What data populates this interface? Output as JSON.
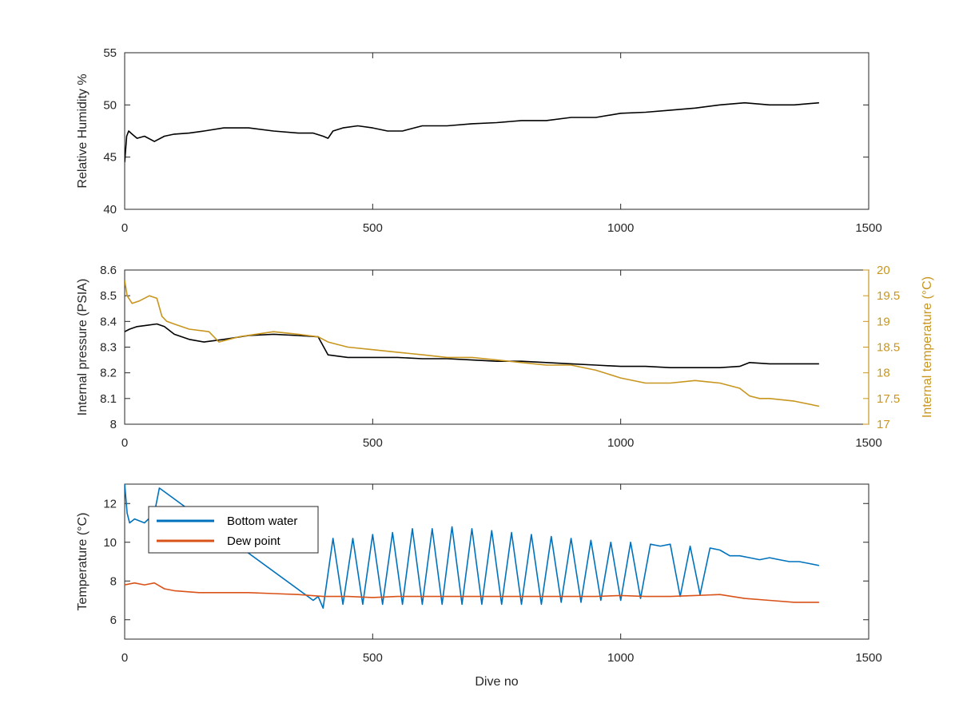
{
  "chart_data": [
    {
      "type": "line",
      "title": "",
      "xlabel": "",
      "ylabel": "Relative Humidity %",
      "xlim": [
        0,
        1500
      ],
      "ylim": [
        40,
        55
      ],
      "xticks": [
        0,
        500,
        1000,
        1500
      ],
      "yticks": [
        40,
        45,
        50,
        55
      ],
      "grid": false,
      "series": [
        {
          "color": "#000000",
          "x": [
            0,
            4,
            8,
            15,
            25,
            40,
            60,
            80,
            100,
            130,
            160,
            200,
            250,
            300,
            350,
            380,
            400,
            410,
            420,
            440,
            470,
            500,
            530,
            560,
            600,
            650,
            700,
            750,
            800,
            850,
            900,
            950,
            1000,
            1050,
            1100,
            1150,
            1200,
            1250,
            1300,
            1350,
            1400
          ],
          "y": [
            44.5,
            47,
            47.5,
            47.2,
            46.8,
            47,
            46.5,
            47,
            47.2,
            47.3,
            47.5,
            47.8,
            47.8,
            47.5,
            47.3,
            47.3,
            47,
            46.8,
            47.5,
            47.8,
            48,
            47.8,
            47.5,
            47.5,
            48,
            48,
            48.2,
            48.3,
            48.5,
            48.5,
            48.8,
            48.8,
            49.2,
            49.3,
            49.5,
            49.7,
            50,
            50.2,
            50,
            50,
            50.2
          ]
        }
      ]
    },
    {
      "type": "line",
      "title": "",
      "xlabel": "",
      "ylabel": "Internal pressure (PSIA)",
      "y2label": "Internal temperature (°C)",
      "xlim": [
        0,
        1500
      ],
      "ylim": [
        8,
        8.6
      ],
      "y2lim": [
        17,
        20
      ],
      "xticks": [
        0,
        500,
        1000,
        1500
      ],
      "yticks": [
        8,
        8.1,
        8.2,
        8.3,
        8.4,
        8.5,
        8.6
      ],
      "y2ticks": [
        17,
        17.5,
        18,
        18.5,
        19,
        19.5,
        20
      ],
      "grid": false,
      "series": [
        {
          "axis": "left",
          "color": "#000000",
          "x": [
            0,
            10,
            25,
            45,
            65,
            80,
            100,
            130,
            160,
            200,
            250,
            300,
            350,
            390,
            410,
            450,
            500,
            550,
            600,
            650,
            700,
            750,
            800,
            850,
            900,
            950,
            1000,
            1050,
            1100,
            1150,
            1200,
            1240,
            1260,
            1300,
            1350,
            1400
          ],
          "y": [
            8.36,
            8.37,
            8.38,
            8.385,
            8.39,
            8.38,
            8.35,
            8.33,
            8.32,
            8.33,
            8.345,
            8.35,
            8.345,
            8.34,
            8.27,
            8.26,
            8.26,
            8.26,
            8.255,
            8.255,
            8.25,
            8.245,
            8.245,
            8.24,
            8.235,
            8.23,
            8.225,
            8.225,
            8.22,
            8.22,
            8.22,
            8.225,
            8.24,
            8.235,
            8.235,
            8.235
          ]
        },
        {
          "axis": "right",
          "color": "#c8961e",
          "x": [
            0,
            5,
            15,
            30,
            50,
            65,
            75,
            85,
            100,
            130,
            170,
            190,
            230,
            300,
            350,
            390,
            410,
            450,
            500,
            550,
            600,
            650,
            700,
            750,
            800,
            850,
            900,
            950,
            1000,
            1050,
            1100,
            1150,
            1200,
            1240,
            1260,
            1280,
            1300,
            1350,
            1400
          ],
          "y": [
            19.8,
            19.5,
            19.35,
            19.4,
            19.5,
            19.45,
            19.1,
            19,
            18.95,
            18.85,
            18.8,
            18.6,
            18.7,
            18.8,
            18.75,
            18.7,
            18.6,
            18.5,
            18.45,
            18.4,
            18.35,
            18.3,
            18.3,
            18.25,
            18.2,
            18.15,
            18.15,
            18.05,
            17.9,
            17.8,
            17.8,
            17.85,
            17.8,
            17.7,
            17.55,
            17.5,
            17.5,
            17.45,
            17.35
          ]
        }
      ]
    },
    {
      "type": "line",
      "title": "",
      "xlabel": "Dive no",
      "ylabel": "Temperature (°C)",
      "xlim": [
        0,
        1500
      ],
      "ylim": [
        5,
        13
      ],
      "xticks": [
        0,
        500,
        1000,
        1500
      ],
      "yticks": [
        6,
        8,
        10,
        12
      ],
      "grid": false,
      "legend": "top-left",
      "series": [
        {
          "name": "Bottom water",
          "color": "#0072bd",
          "x": [
            0,
            5,
            10,
            20,
            40,
            60,
            70,
            380,
            390,
            400,
            420,
            440,
            460,
            480,
            500,
            520,
            540,
            560,
            580,
            600,
            620,
            640,
            660,
            680,
            700,
            720,
            740,
            760,
            780,
            800,
            820,
            840,
            860,
            880,
            900,
            920,
            940,
            960,
            980,
            1000,
            1020,
            1040,
            1060,
            1080,
            1100,
            1120,
            1140,
            1160,
            1180,
            1200,
            1220,
            1240,
            1260,
            1280,
            1300,
            1320,
            1340,
            1360,
            1380,
            1400
          ],
          "y": [
            13,
            11.5,
            11,
            11.2,
            11,
            11.5,
            12.8,
            7,
            7.2,
            6.6,
            10.2,
            6.8,
            10.2,
            6.8,
            10.4,
            6.8,
            10.5,
            6.8,
            10.7,
            6.8,
            10.7,
            6.8,
            10.8,
            6.8,
            10.7,
            6.8,
            10.6,
            6.8,
            10.5,
            6.8,
            10.4,
            6.8,
            10.3,
            6.9,
            10.2,
            6.9,
            10.1,
            7,
            10,
            7,
            10,
            7.1,
            9.9,
            9.8,
            9.9,
            7.2,
            9.8,
            7.3,
            9.7,
            9.6,
            9.3,
            9.3,
            9.2,
            9.1,
            9.2,
            9.1,
            9.0,
            9.0,
            8.9,
            8.8
          ]
        },
        {
          "name": "Dew point",
          "color": "#d95319",
          "x": [
            0,
            20,
            40,
            60,
            80,
            100,
            150,
            200,
            250,
            300,
            350,
            400,
            450,
            500,
            550,
            600,
            650,
            700,
            750,
            800,
            850,
            900,
            950,
            1000,
            1050,
            1100,
            1150,
            1200,
            1250,
            1300,
            1350,
            1400
          ],
          "y": [
            7.8,
            7.9,
            7.8,
            7.9,
            7.6,
            7.5,
            7.4,
            7.4,
            7.4,
            7.35,
            7.3,
            7.2,
            7.2,
            7.15,
            7.2,
            7.2,
            7.2,
            7.2,
            7.2,
            7.2,
            7.2,
            7.2,
            7.2,
            7.25,
            7.2,
            7.2,
            7.25,
            7.3,
            7.1,
            7.0,
            6.9,
            6.9
          ]
        }
      ]
    }
  ]
}
